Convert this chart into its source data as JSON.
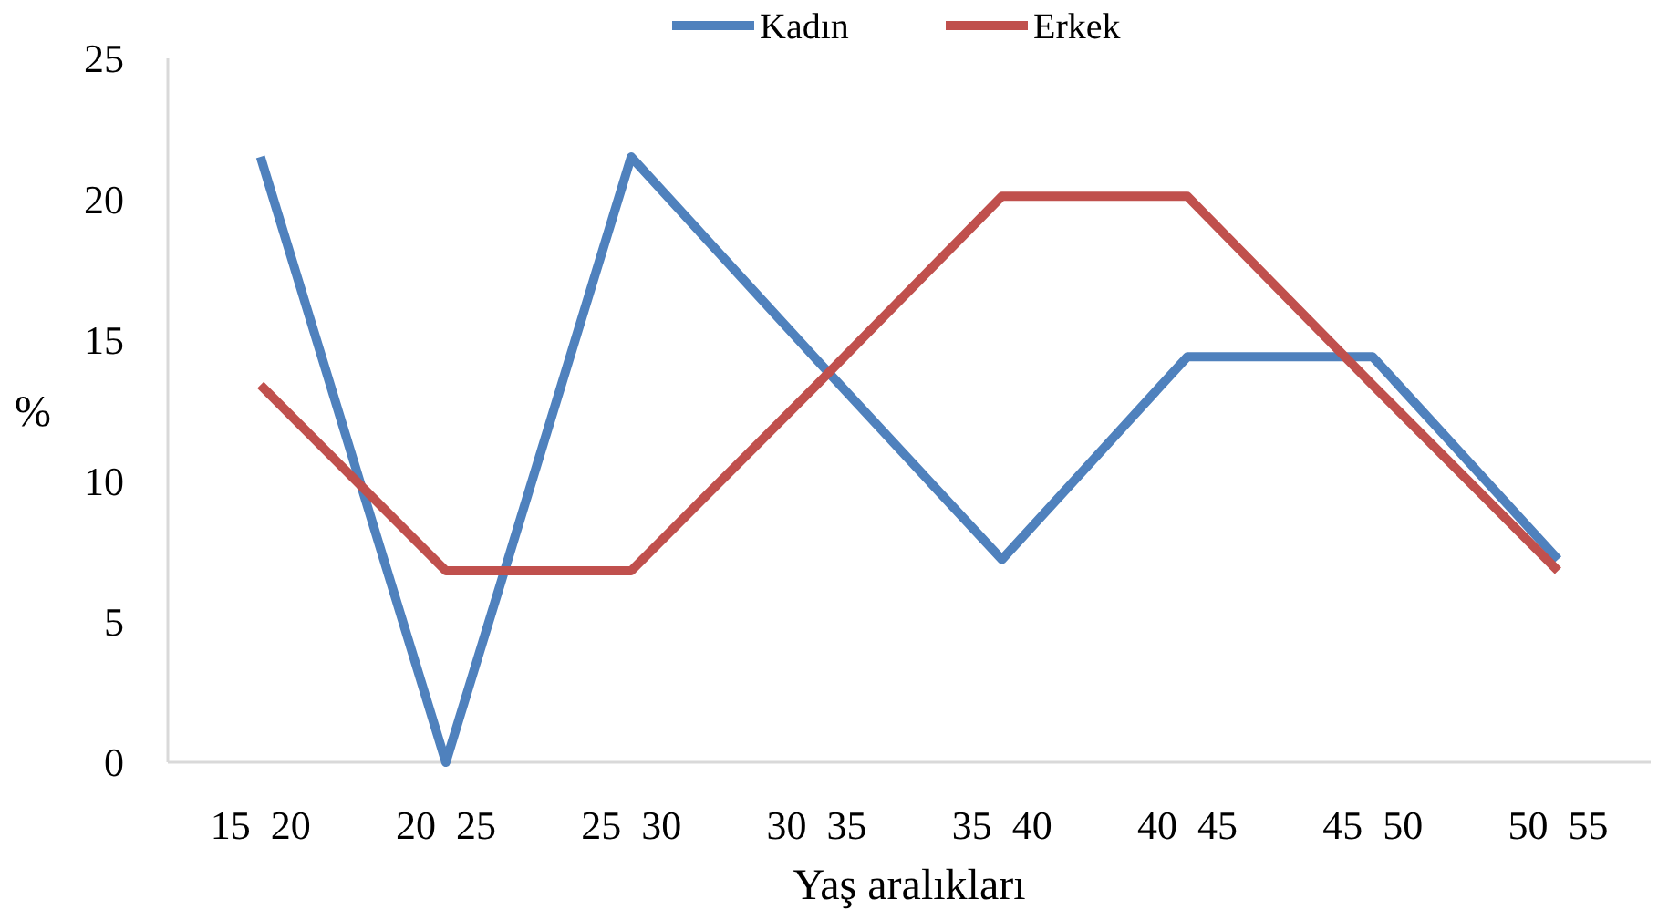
{
  "chart_data": {
    "type": "line",
    "xlabel": "Yaş aralıkları",
    "ylabel": "%",
    "categories": [
      "15  20",
      "20  25",
      "25  30",
      "30  35",
      "35  40",
      "40  45",
      "45  50",
      "50  55"
    ],
    "series": [
      {
        "name": "Kadın",
        "color": "#4f81bd",
        "values": [
          21.5,
          0,
          21.5,
          14.3,
          7.2,
          14.4,
          14.4,
          7.2
        ]
      },
      {
        "name": "Erkek",
        "color": "#c0504d",
        "values": [
          13.4,
          6.8,
          6.8,
          13.4,
          20.1,
          20.1,
          13.4,
          6.8
        ]
      }
    ],
    "ylim": [
      0,
      25
    ],
    "yticks": [
      0,
      5,
      10,
      15,
      20,
      25
    ],
    "grid": false,
    "legend": "top",
    "marker": "none",
    "line_style": "solid"
  }
}
